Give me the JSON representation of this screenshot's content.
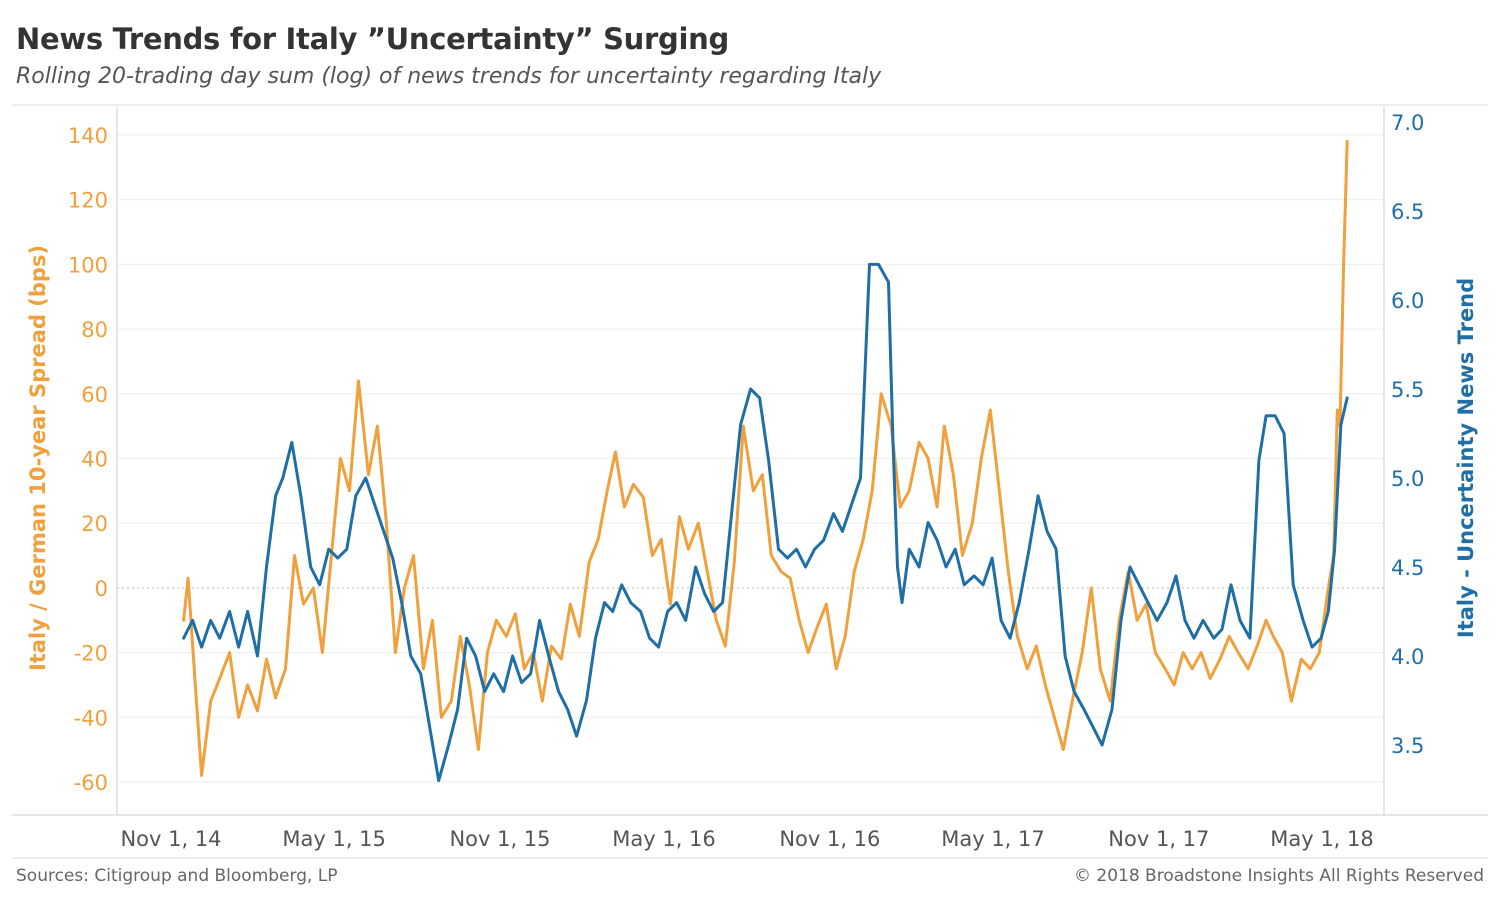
{
  "header": {
    "title": "News Trends for Italy ”Uncertainty” Surging",
    "subtitle": "Rolling 20-trading day sum (log) of news trends for uncertainty regarding Italy"
  },
  "footer": {
    "sources": "Sources: Citigroup and Bloomberg, LP",
    "copyright": "© 2018 Broadstone Insights All Rights Reserved"
  },
  "colors": {
    "spread": "#f0a03c",
    "news": "#1f6fa6",
    "grid": "#eeeeee",
    "axis": "#cccccc"
  },
  "chart_data": {
    "type": "line",
    "title": "News Trends for Italy ”Uncertainty” Surging",
    "subtitle": "Rolling 20-trading day sum (log) of news trends for uncertainty regarding Italy",
    "ylabel_left": "Italy / German 10-year Spread (bps)",
    "ylabel_right": "Italy - Uncertainty News Trend",
    "ylim_left": [
      -70,
      145
    ],
    "ylim_right": [
      3.2,
      7.05
    ],
    "yticks_left": [
      -60,
      -40,
      -20,
      0,
      20,
      40,
      60,
      80,
      100,
      120,
      140
    ],
    "yticks_right": [
      "3.5",
      "4.0",
      "4.5",
      "5.0",
      "5.5",
      "6.0",
      "6.5",
      "7.0"
    ],
    "xlim": [
      "2014-10-01",
      "2018-08-01"
    ],
    "xticks": [
      {
        "date": "2014-11-01",
        "label": "Nov 1, 14"
      },
      {
        "date": "2015-05-01",
        "label": "May 1, 15"
      },
      {
        "date": "2015-11-01",
        "label": "Nov 1, 15"
      },
      {
        "date": "2016-05-01",
        "label": "May 1, 16"
      },
      {
        "date": "2016-11-01",
        "label": "Nov 1, 16"
      },
      {
        "date": "2017-05-01",
        "label": "May 1, 17"
      },
      {
        "date": "2017-11-01",
        "label": "Nov 1, 17"
      },
      {
        "date": "2018-05-01",
        "label": "May 1, 18"
      }
    ],
    "grid": true,
    "zero_reference_line": true,
    "series": [
      {
        "name": "Italy / German 10-year Spread (bps)",
        "axis": "left",
        "points": [
          [
            "2014-11-15",
            -10
          ],
          [
            "2014-11-20",
            3
          ],
          [
            "2014-11-28",
            -30
          ],
          [
            "2014-12-05",
            -58
          ],
          [
            "2014-12-15",
            -35
          ],
          [
            "2014-12-25",
            -28
          ],
          [
            "2015-01-05",
            -20
          ],
          [
            "2015-01-15",
            -40
          ],
          [
            "2015-01-25",
            -30
          ],
          [
            "2015-02-05",
            -38
          ],
          [
            "2015-02-15",
            -22
          ],
          [
            "2015-02-25",
            -34
          ],
          [
            "2015-03-08",
            -25
          ],
          [
            "2015-03-18",
            10
          ],
          [
            "2015-03-28",
            -5
          ],
          [
            "2015-04-08",
            0
          ],
          [
            "2015-04-18",
            -20
          ],
          [
            "2015-04-28",
            10
          ],
          [
            "2015-05-08",
            40
          ],
          [
            "2015-05-18",
            30
          ],
          [
            "2015-05-28",
            64
          ],
          [
            "2015-06-08",
            35
          ],
          [
            "2015-06-18",
            50
          ],
          [
            "2015-06-28",
            20
          ],
          [
            "2015-07-08",
            -20
          ],
          [
            "2015-07-18",
            0
          ],
          [
            "2015-07-28",
            10
          ],
          [
            "2015-08-08",
            -25
          ],
          [
            "2015-08-18",
            -10
          ],
          [
            "2015-08-28",
            -40
          ],
          [
            "2015-09-08",
            -35
          ],
          [
            "2015-09-18",
            -15
          ],
          [
            "2015-09-28",
            -30
          ],
          [
            "2015-10-08",
            -50
          ],
          [
            "2015-10-18",
            -20
          ],
          [
            "2015-10-28",
            -10
          ],
          [
            "2015-11-08",
            -15
          ],
          [
            "2015-11-18",
            -8
          ],
          [
            "2015-11-28",
            -25
          ],
          [
            "2015-12-08",
            -20
          ],
          [
            "2015-12-18",
            -35
          ],
          [
            "2015-12-28",
            -18
          ],
          [
            "2016-01-08",
            -22
          ],
          [
            "2016-01-18",
            -5
          ],
          [
            "2016-01-28",
            -15
          ],
          [
            "2016-02-08",
            8
          ],
          [
            "2016-02-18",
            15
          ],
          [
            "2016-02-28",
            30
          ],
          [
            "2016-03-08",
            42
          ],
          [
            "2016-03-18",
            25
          ],
          [
            "2016-03-28",
            32
          ],
          [
            "2016-04-08",
            28
          ],
          [
            "2016-04-18",
            10
          ],
          [
            "2016-04-28",
            15
          ],
          [
            "2016-05-08",
            -5
          ],
          [
            "2016-05-18",
            22
          ],
          [
            "2016-05-28",
            12
          ],
          [
            "2016-06-08",
            20
          ],
          [
            "2016-06-18",
            5
          ],
          [
            "2016-06-28",
            -10
          ],
          [
            "2016-07-08",
            -18
          ],
          [
            "2016-07-18",
            8
          ],
          [
            "2016-07-28",
            50
          ],
          [
            "2016-08-08",
            30
          ],
          [
            "2016-08-18",
            35
          ],
          [
            "2016-08-28",
            10
          ],
          [
            "2016-09-08",
            5
          ],
          [
            "2016-09-18",
            3
          ],
          [
            "2016-09-28",
            -10
          ],
          [
            "2016-10-08",
            -20
          ],
          [
            "2016-10-18",
            -12
          ],
          [
            "2016-10-28",
            -5
          ],
          [
            "2016-11-08",
            -25
          ],
          [
            "2016-11-18",
            -15
          ],
          [
            "2016-11-28",
            5
          ],
          [
            "2016-12-08",
            15
          ],
          [
            "2016-12-18",
            30
          ],
          [
            "2016-12-28",
            60
          ],
          [
            "2017-01-08",
            50
          ],
          [
            "2017-01-18",
            25
          ],
          [
            "2017-01-28",
            30
          ],
          [
            "2017-02-08",
            45
          ],
          [
            "2017-02-18",
            40
          ],
          [
            "2017-02-28",
            25
          ],
          [
            "2017-03-08",
            50
          ],
          [
            "2017-03-18",
            35
          ],
          [
            "2017-03-28",
            10
          ],
          [
            "2017-04-08",
            20
          ],
          [
            "2017-04-18",
            40
          ],
          [
            "2017-04-28",
            55
          ],
          [
            "2017-05-08",
            30
          ],
          [
            "2017-05-18",
            5
          ],
          [
            "2017-05-28",
            -15
          ],
          [
            "2017-06-08",
            -25
          ],
          [
            "2017-06-18",
            -18
          ],
          [
            "2017-06-28",
            -30
          ],
          [
            "2017-07-08",
            -40
          ],
          [
            "2017-07-18",
            -50
          ],
          [
            "2017-07-28",
            -35
          ],
          [
            "2017-08-08",
            -20
          ],
          [
            "2017-08-18",
            0
          ],
          [
            "2017-08-28",
            -25
          ],
          [
            "2017-09-08",
            -35
          ],
          [
            "2017-09-18",
            -10
          ],
          [
            "2017-09-28",
            5
          ],
          [
            "2017-10-08",
            -10
          ],
          [
            "2017-10-18",
            -5
          ],
          [
            "2017-10-28",
            -20
          ],
          [
            "2017-11-08",
            -25
          ],
          [
            "2017-11-18",
            -30
          ],
          [
            "2017-11-28",
            -20
          ],
          [
            "2017-12-08",
            -25
          ],
          [
            "2017-12-18",
            -20
          ],
          [
            "2017-12-28",
            -28
          ],
          [
            "2018-01-08",
            -22
          ],
          [
            "2018-01-18",
            -15
          ],
          [
            "2018-01-28",
            -20
          ],
          [
            "2018-02-08",
            -25
          ],
          [
            "2018-02-18",
            -18
          ],
          [
            "2018-02-28",
            -10
          ],
          [
            "2018-03-08",
            -15
          ],
          [
            "2018-03-18",
            -20
          ],
          [
            "2018-03-28",
            -35
          ],
          [
            "2018-04-08",
            -22
          ],
          [
            "2018-04-18",
            -25
          ],
          [
            "2018-04-28",
            -20
          ],
          [
            "2018-05-08",
            0
          ],
          [
            "2018-05-14",
            10
          ],
          [
            "2018-05-18",
            55
          ],
          [
            "2018-05-21",
            50
          ],
          [
            "2018-05-25",
            100
          ],
          [
            "2018-05-29",
            138
          ]
        ]
      },
      {
        "name": "Italy - Uncertainty News Trend",
        "axis": "right",
        "points": [
          [
            "2014-11-15",
            4.1
          ],
          [
            "2014-11-25",
            4.2
          ],
          [
            "2014-12-05",
            4.05
          ],
          [
            "2014-12-15",
            4.2
          ],
          [
            "2014-12-25",
            4.1
          ],
          [
            "2015-01-05",
            4.25
          ],
          [
            "2015-01-15",
            4.05
          ],
          [
            "2015-01-25",
            4.25
          ],
          [
            "2015-02-05",
            4.0
          ],
          [
            "2015-02-15",
            4.5
          ],
          [
            "2015-02-25",
            4.9
          ],
          [
            "2015-03-05",
            5.0
          ],
          [
            "2015-03-15",
            5.2
          ],
          [
            "2015-03-25",
            4.9
          ],
          [
            "2015-04-05",
            4.5
          ],
          [
            "2015-04-15",
            4.4
          ],
          [
            "2015-04-25",
            4.6
          ],
          [
            "2015-05-05",
            4.55
          ],
          [
            "2015-05-15",
            4.6
          ],
          [
            "2015-05-25",
            4.9
          ],
          [
            "2015-06-05",
            5.0
          ],
          [
            "2015-06-15",
            4.85
          ],
          [
            "2015-06-25",
            4.7
          ],
          [
            "2015-07-05",
            4.55
          ],
          [
            "2015-07-15",
            4.3
          ],
          [
            "2015-07-25",
            4.0
          ],
          [
            "2015-08-05",
            3.9
          ],
          [
            "2015-08-15",
            3.6
          ],
          [
            "2015-08-25",
            3.3
          ],
          [
            "2015-09-05",
            3.5
          ],
          [
            "2015-09-15",
            3.7
          ],
          [
            "2015-09-25",
            4.1
          ],
          [
            "2015-10-05",
            4.0
          ],
          [
            "2015-10-15",
            3.8
          ],
          [
            "2015-10-25",
            3.9
          ],
          [
            "2015-11-05",
            3.8
          ],
          [
            "2015-11-15",
            4.0
          ],
          [
            "2015-11-25",
            3.85
          ],
          [
            "2015-12-05",
            3.9
          ],
          [
            "2015-12-15",
            4.2
          ],
          [
            "2015-12-25",
            4.0
          ],
          [
            "2016-01-05",
            3.8
          ],
          [
            "2016-01-15",
            3.7
          ],
          [
            "2016-01-25",
            3.55
          ],
          [
            "2016-02-05",
            3.75
          ],
          [
            "2016-02-15",
            4.1
          ],
          [
            "2016-02-25",
            4.3
          ],
          [
            "2016-03-05",
            4.25
          ],
          [
            "2016-03-15",
            4.4
          ],
          [
            "2016-03-25",
            4.3
          ],
          [
            "2016-04-05",
            4.25
          ],
          [
            "2016-04-15",
            4.1
          ],
          [
            "2016-04-25",
            4.05
          ],
          [
            "2016-05-05",
            4.25
          ],
          [
            "2016-05-15",
            4.3
          ],
          [
            "2016-05-25",
            4.2
          ],
          [
            "2016-06-05",
            4.5
          ],
          [
            "2016-06-15",
            4.35
          ],
          [
            "2016-06-25",
            4.25
          ],
          [
            "2016-07-05",
            4.3
          ],
          [
            "2016-07-15",
            4.8
          ],
          [
            "2016-07-25",
            5.3
          ],
          [
            "2016-08-05",
            5.5
          ],
          [
            "2016-08-15",
            5.45
          ],
          [
            "2016-08-25",
            5.1
          ],
          [
            "2016-09-05",
            4.6
          ],
          [
            "2016-09-15",
            4.55
          ],
          [
            "2016-09-25",
            4.6
          ],
          [
            "2016-10-05",
            4.5
          ],
          [
            "2016-10-15",
            4.6
          ],
          [
            "2016-10-25",
            4.65
          ],
          [
            "2016-11-05",
            4.8
          ],
          [
            "2016-11-15",
            4.7
          ],
          [
            "2016-11-25",
            4.85
          ],
          [
            "2016-12-05",
            5.0
          ],
          [
            "2016-12-15",
            6.2
          ],
          [
            "2016-12-25",
            6.2
          ],
          [
            "2017-01-05",
            6.1
          ],
          [
            "2017-01-10",
            5.2
          ],
          [
            "2017-01-15",
            4.5
          ],
          [
            "2017-01-20",
            4.3
          ],
          [
            "2017-01-28",
            4.6
          ],
          [
            "2017-02-08",
            4.5
          ],
          [
            "2017-02-18",
            4.75
          ],
          [
            "2017-02-28",
            4.65
          ],
          [
            "2017-03-10",
            4.5
          ],
          [
            "2017-03-20",
            4.6
          ],
          [
            "2017-03-30",
            4.4
          ],
          [
            "2017-04-10",
            4.45
          ],
          [
            "2017-04-20",
            4.4
          ],
          [
            "2017-04-30",
            4.55
          ],
          [
            "2017-05-10",
            4.2
          ],
          [
            "2017-05-20",
            4.1
          ],
          [
            "2017-05-30",
            4.3
          ],
          [
            "2017-06-10",
            4.6
          ],
          [
            "2017-06-20",
            4.9
          ],
          [
            "2017-06-30",
            4.7
          ],
          [
            "2017-07-10",
            4.6
          ],
          [
            "2017-07-20",
            4.0
          ],
          [
            "2017-07-30",
            3.8
          ],
          [
            "2017-08-10",
            3.7
          ],
          [
            "2017-08-20",
            3.6
          ],
          [
            "2017-08-30",
            3.5
          ],
          [
            "2017-09-10",
            3.7
          ],
          [
            "2017-09-20",
            4.2
          ],
          [
            "2017-09-30",
            4.5
          ],
          [
            "2017-10-10",
            4.4
          ],
          [
            "2017-10-20",
            4.3
          ],
          [
            "2017-10-30",
            4.2
          ],
          [
            "2017-11-10",
            4.3
          ],
          [
            "2017-11-20",
            4.45
          ],
          [
            "2017-11-30",
            4.2
          ],
          [
            "2017-12-10",
            4.1
          ],
          [
            "2017-12-20",
            4.2
          ],
          [
            "2018-01-01",
            4.1
          ],
          [
            "2018-01-10",
            4.15
          ],
          [
            "2018-01-20",
            4.4
          ],
          [
            "2018-01-30",
            4.2
          ],
          [
            "2018-02-10",
            4.1
          ],
          [
            "2018-02-20",
            5.1
          ],
          [
            "2018-02-28",
            5.35
          ],
          [
            "2018-03-10",
            5.35
          ],
          [
            "2018-03-20",
            5.25
          ],
          [
            "2018-03-30",
            4.4
          ],
          [
            "2018-04-10",
            4.2
          ],
          [
            "2018-04-20",
            4.05
          ],
          [
            "2018-04-30",
            4.1
          ],
          [
            "2018-05-08",
            4.25
          ],
          [
            "2018-05-15",
            4.6
          ],
          [
            "2018-05-22",
            5.3
          ],
          [
            "2018-05-29",
            5.45
          ]
        ]
      }
    ]
  }
}
